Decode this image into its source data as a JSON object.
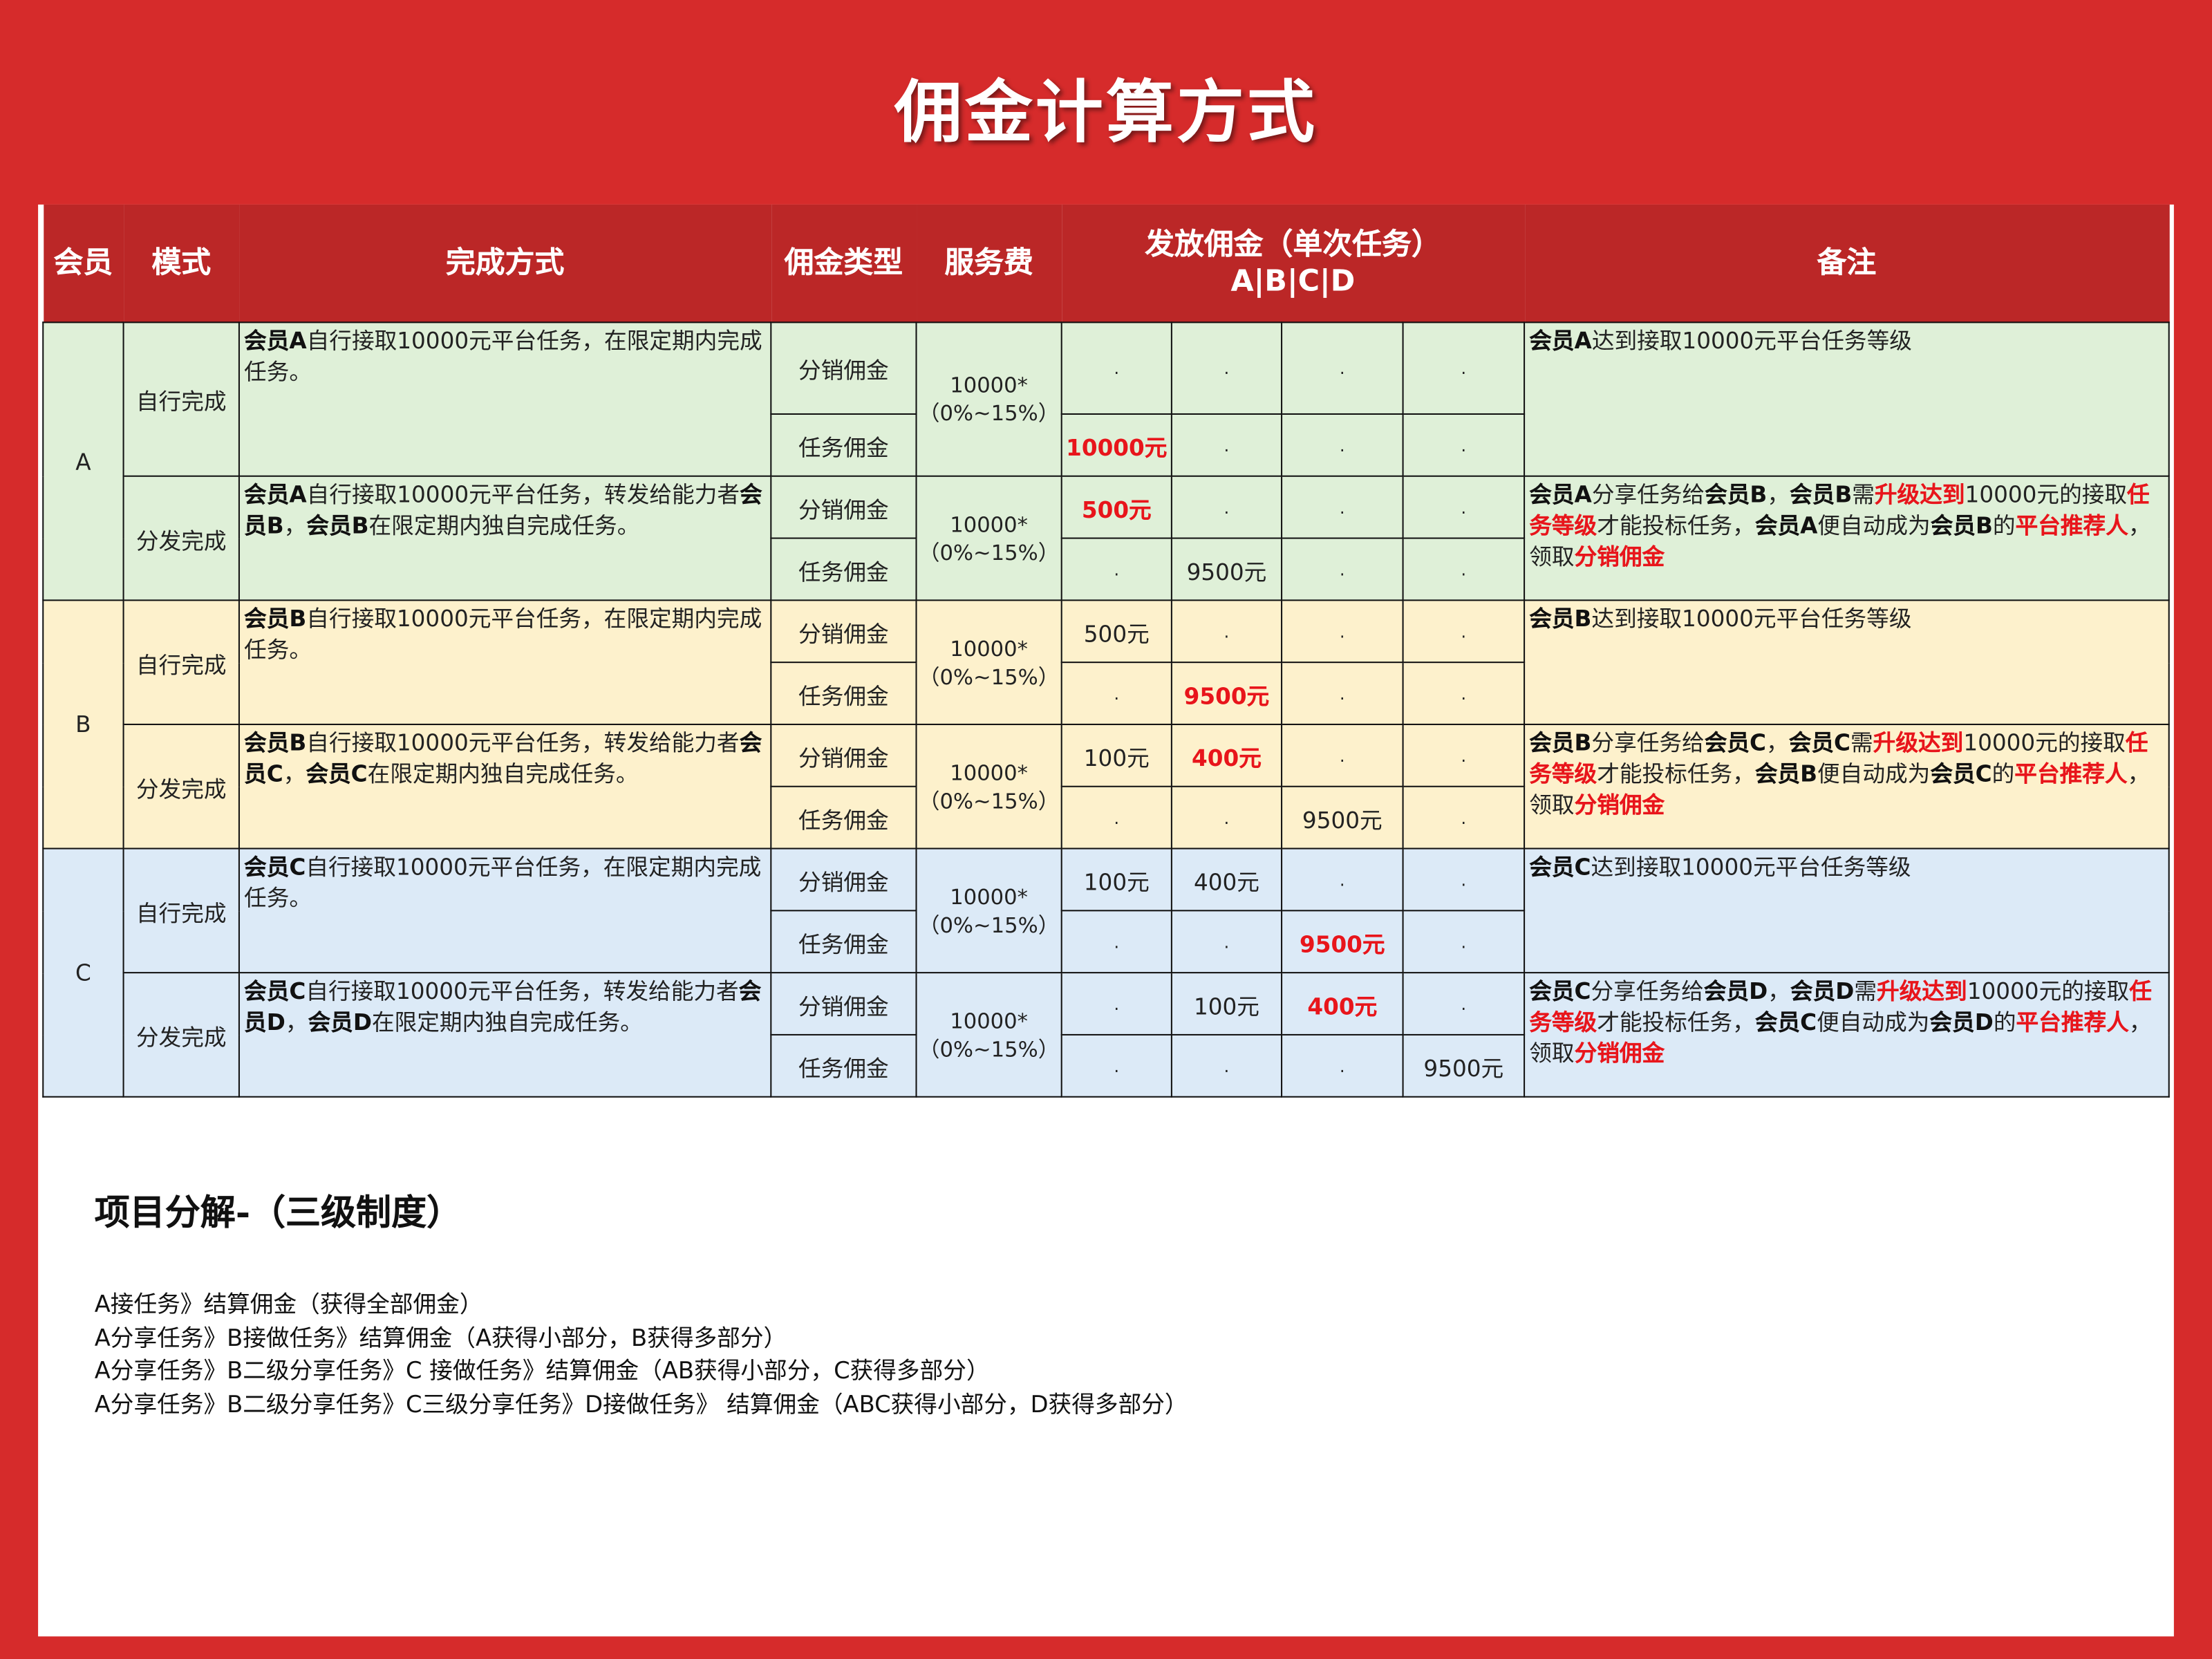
{
  "title": "佣金计算方式",
  "headers": {
    "member": "会员",
    "mode": "模式",
    "method": "完成方式",
    "type": "佣金类型",
    "fee": "服务费",
    "payout": "发放佣金（单次任务）",
    "payout_sub": "A|B|C|D",
    "note": "备注"
  },
  "colors": {
    "red_bg": "#d62b2b",
    "header_bg": "#bb2727",
    "group_a": "#dff0d8",
    "group_b": "#fdf1cc",
    "group_c": "#dceaf7",
    "highlight": "#e8151b"
  },
  "groups": [
    {
      "member": "A",
      "cls": "ga",
      "modes": [
        {
          "mode": "自行完成",
          "desc": [
            [
              "b",
              "会员A"
            ],
            [
              "n",
              "自行接取10000元平台任务，在限定期内完成任务。"
            ]
          ],
          "fee": [
            "10000*",
            "（0%~15%）"
          ],
          "types": [
            {
              "type": "分销佣金",
              "cells": [
                {
                  "v": "."
                },
                {
                  "v": "."
                },
                {
                  "v": "."
                },
                {
                  "v": "."
                }
              ]
            },
            {
              "type": "任务佣金",
              "cells": [
                {
                  "v": "10000元",
                  "hl": true
                },
                {
                  "v": "."
                },
                {
                  "v": "."
                },
                {
                  "v": "."
                }
              ]
            }
          ],
          "note": [
            [
              "b",
              "会员A"
            ],
            [
              "n",
              "达到接取10000元平台任务等级"
            ]
          ]
        },
        {
          "mode": "分发完成",
          "desc": [
            [
              "b",
              "会员A"
            ],
            [
              "n",
              "自行接取10000元平台任务，转发给能力者"
            ],
            [
              "b",
              "会员B"
            ],
            [
              "n",
              "，"
            ],
            [
              "b",
              "会员B"
            ],
            [
              "n",
              "在限定期内独自完成任务。"
            ]
          ],
          "fee": [
            "10000*",
            "（0%~15%）"
          ],
          "types": [
            {
              "type": "分销佣金",
              "cells": [
                {
                  "v": "500元",
                  "hl": true
                },
                {
                  "v": "."
                },
                {
                  "v": "."
                },
                {
                  "v": "."
                }
              ]
            },
            {
              "type": "任务佣金",
              "cells": [
                {
                  "v": "."
                },
                {
                  "v": "9500元"
                },
                {
                  "v": "."
                },
                {
                  "v": "."
                }
              ]
            }
          ],
          "note": [
            [
              "b",
              "会员A"
            ],
            [
              "n",
              "分享任务给"
            ],
            [
              "b",
              "会员B"
            ],
            [
              "n",
              "，"
            ],
            [
              "b",
              "会员B"
            ],
            [
              "n",
              "需"
            ],
            [
              "r",
              "升级达到"
            ],
            [
              "n",
              "10000元的接取"
            ],
            [
              "r",
              "任务等级"
            ],
            [
              "n",
              "才能投标任务，"
            ],
            [
              "b",
              "会员A"
            ],
            [
              "n",
              "便自动成为"
            ],
            [
              "b",
              "会员B"
            ],
            [
              "n",
              "的"
            ],
            [
              "r",
              "平台推荐人"
            ],
            [
              "n",
              "，领取"
            ],
            [
              "r",
              "分销佣金"
            ]
          ]
        }
      ]
    },
    {
      "member": "B",
      "cls": "gb",
      "modes": [
        {
          "mode": "自行完成",
          "desc": [
            [
              "b",
              "会员B"
            ],
            [
              "n",
              "自行接取10000元平台任务，在限定期内完成任务。"
            ]
          ],
          "fee": [
            "10000*",
            "（0%~15%）"
          ],
          "types": [
            {
              "type": "分销佣金",
              "cells": [
                {
                  "v": "500元"
                },
                {
                  "v": "."
                },
                {
                  "v": "."
                },
                {
                  "v": "."
                }
              ]
            },
            {
              "type": "任务佣金",
              "cells": [
                {
                  "v": "."
                },
                {
                  "v": "9500元",
                  "hl": true
                },
                {
                  "v": "."
                },
                {
                  "v": "."
                }
              ]
            }
          ],
          "note": [
            [
              "b",
              "会员B"
            ],
            [
              "n",
              "达到接取10000元平台任务等级"
            ]
          ]
        },
        {
          "mode": "分发完成",
          "desc": [
            [
              "b",
              "会员B"
            ],
            [
              "n",
              "自行接取10000元平台任务，转发给能力者"
            ],
            [
              "b",
              "会员C"
            ],
            [
              "n",
              "，"
            ],
            [
              "b",
              "会员C"
            ],
            [
              "n",
              "在限定期内独自完成任务。"
            ]
          ],
          "fee": [
            "10000*",
            "（0%~15%）"
          ],
          "types": [
            {
              "type": "分销佣金",
              "cells": [
                {
                  "v": "100元"
                },
                {
                  "v": "400元",
                  "hl": true
                },
                {
                  "v": "."
                },
                {
                  "v": "."
                }
              ]
            },
            {
              "type": "任务佣金",
              "cells": [
                {
                  "v": "."
                },
                {
                  "v": "."
                },
                {
                  "v": "9500元"
                },
                {
                  "v": "."
                }
              ]
            }
          ],
          "note": [
            [
              "b",
              "会员B"
            ],
            [
              "n",
              "分享任务给"
            ],
            [
              "b",
              "会员C"
            ],
            [
              "n",
              "，"
            ],
            [
              "b",
              "会员C"
            ],
            [
              "n",
              "需"
            ],
            [
              "r",
              "升级达到"
            ],
            [
              "n",
              "10000元的接取"
            ],
            [
              "r",
              "任务等级"
            ],
            [
              "n",
              "才能投标任务，"
            ],
            [
              "b",
              "会员B"
            ],
            [
              "n",
              "便自动成为"
            ],
            [
              "b",
              "会员C"
            ],
            [
              "n",
              "的"
            ],
            [
              "r",
              "平台推荐人"
            ],
            [
              "n",
              "，领取"
            ],
            [
              "r",
              "分销佣金"
            ]
          ]
        }
      ]
    },
    {
      "member": "C",
      "cls": "gc",
      "modes": [
        {
          "mode": "自行完成",
          "desc": [
            [
              "b",
              "会员C"
            ],
            [
              "n",
              "自行接取10000元平台任务，在限定期内完成任务。"
            ]
          ],
          "fee": [
            "10000*",
            "（0%~15%）"
          ],
          "types": [
            {
              "type": "分销佣金",
              "cells": [
                {
                  "v": "100元"
                },
                {
                  "v": "400元"
                },
                {
                  "v": "."
                },
                {
                  "v": "."
                }
              ]
            },
            {
              "type": "任务佣金",
              "cells": [
                {
                  "v": "."
                },
                {
                  "v": "."
                },
                {
                  "v": "9500元",
                  "hl": true
                },
                {
                  "v": "."
                }
              ]
            }
          ],
          "note": [
            [
              "b",
              "会员C"
            ],
            [
              "n",
              "达到接取10000元平台任务等级"
            ]
          ]
        },
        {
          "mode": "分发完成",
          "desc": [
            [
              "b",
              "会员C"
            ],
            [
              "n",
              "自行接取10000元平台任务，转发给能力者"
            ],
            [
              "b",
              "会员D"
            ],
            [
              "n",
              "，"
            ],
            [
              "b",
              "会员D"
            ],
            [
              "n",
              "在限定期内独自完成任务。"
            ]
          ],
          "fee": [
            "10000*",
            "（0%~15%）"
          ],
          "types": [
            {
              "type": "分销佣金",
              "cells": [
                {
                  "v": "."
                },
                {
                  "v": "100元"
                },
                {
                  "v": "400元",
                  "hl": true
                },
                {
                  "v": "."
                }
              ]
            },
            {
              "type": "任务佣金",
              "cells": [
                {
                  "v": "."
                },
                {
                  "v": "."
                },
                {
                  "v": "."
                },
                {
                  "v": "9500元"
                }
              ]
            }
          ],
          "note": [
            [
              "b",
              "会员C"
            ],
            [
              "n",
              "分享任务给"
            ],
            [
              "b",
              "会员D"
            ],
            [
              "n",
              "，"
            ],
            [
              "b",
              "会员D"
            ],
            [
              "n",
              "需"
            ],
            [
              "r",
              "升级达到"
            ],
            [
              "n",
              "10000元的接取"
            ],
            [
              "r",
              "任务等级"
            ],
            [
              "n",
              "才能投标任务，"
            ],
            [
              "b",
              "会员C"
            ],
            [
              "n",
              "便自动成为"
            ],
            [
              "b",
              "会员D"
            ],
            [
              "n",
              "的"
            ],
            [
              "r",
              "平台推荐人"
            ],
            [
              "n",
              "，领取"
            ],
            [
              "r",
              "分销佣金"
            ]
          ]
        }
      ]
    }
  ],
  "breakdown": {
    "heading": "项目分解-（三级制度）",
    "lines": [
      "A接任务》结算佣金（获得全部佣金）",
      "A分享任务》B接做任务》结算佣金（A获得小部分，B获得多部分）",
      "A分享任务》B二级分享任务》C 接做任务》结算佣金（AB获得小部分，C获得多部分）",
      "A分享任务》B二级分享任务》C三级分享任务》D接做任务》 结算佣金（ABC获得小部分，D获得多部分）"
    ]
  }
}
